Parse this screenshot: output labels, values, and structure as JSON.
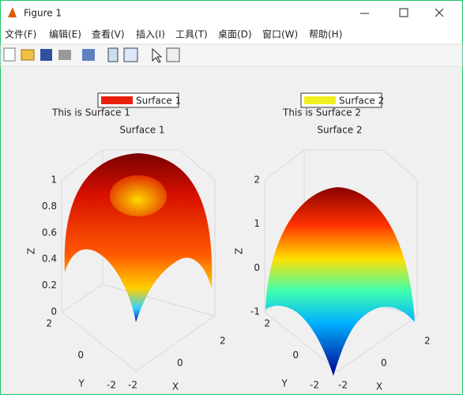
{
  "window": {
    "title": "Figure 1"
  },
  "menu": {
    "items": [
      "文件(F)",
      "编辑(E)",
      "查看(V)",
      "插入(I)",
      "工具(T)",
      "桌面(D)",
      "窗口(W)",
      "帮助(H)"
    ]
  },
  "axes": [
    {
      "legend": "Surface 1",
      "annotation": "This is Surface 1",
      "title": "Surface 1",
      "xlabel": "X",
      "ylabel": "Y",
      "zlabel": "Z",
      "xticks": [
        -2,
        0,
        2
      ],
      "yticks": [
        -2,
        0,
        2
      ],
      "zticks": [
        0,
        0.2,
        0.4,
        0.6,
        0.8,
        1
      ]
    },
    {
      "legend": "Surface 2",
      "annotation": "This is Surface 2",
      "title": "Surface 2",
      "xlabel": "X",
      "ylabel": "Y",
      "zlabel": "Z",
      "xticks": [
        -2,
        0,
        2
      ],
      "yticks": [
        -2,
        0,
        2
      ],
      "zticks": [
        -1,
        0,
        1,
        2
      ]
    }
  ]
}
